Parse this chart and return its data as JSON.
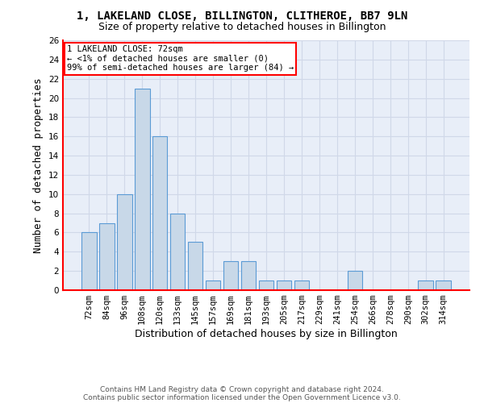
{
  "title": "1, LAKELAND CLOSE, BILLINGTON, CLITHEROE, BB7 9LN",
  "subtitle": "Size of property relative to detached houses in Billington",
  "xlabel": "Distribution of detached houses by size in Billington",
  "ylabel": "Number of detached properties",
  "bar_labels": [
    "72sqm",
    "84sqm",
    "96sqm",
    "108sqm",
    "120sqm",
    "133sqm",
    "145sqm",
    "157sqm",
    "169sqm",
    "181sqm",
    "193sqm",
    "205sqm",
    "217sqm",
    "229sqm",
    "241sqm",
    "254sqm",
    "266sqm",
    "278sqm",
    "290sqm",
    "302sqm",
    "314sqm"
  ],
  "bar_values": [
    6,
    7,
    10,
    21,
    16,
    8,
    5,
    1,
    3,
    3,
    1,
    1,
    1,
    0,
    0,
    2,
    0,
    0,
    0,
    1,
    1
  ],
  "bar_color": "#c8d8e8",
  "bar_edge_color": "#5b9bd5",
  "annotation_line1": "1 LAKELAND CLOSE: 72sqm",
  "annotation_line2": "← <1% of detached houses are smaller (0)",
  "annotation_line3": "99% of semi-detached houses are larger (84) →",
  "annotation_box_color": "white",
  "annotation_box_edge_color": "red",
  "ylim": [
    0,
    26
  ],
  "yticks": [
    0,
    2,
    4,
    6,
    8,
    10,
    12,
    14,
    16,
    18,
    20,
    22,
    24,
    26
  ],
  "grid_color": "#d0d8e8",
  "background_color": "#e8eef8",
  "footer_line1": "Contains HM Land Registry data © Crown copyright and database right 2024.",
  "footer_line2": "Contains public sector information licensed under the Open Government Licence v3.0.",
  "title_fontsize": 10,
  "subtitle_fontsize": 9,
  "axis_label_fontsize": 9,
  "tick_fontsize": 7.5,
  "annotation_fontsize": 7.5,
  "footer_fontsize": 6.5
}
